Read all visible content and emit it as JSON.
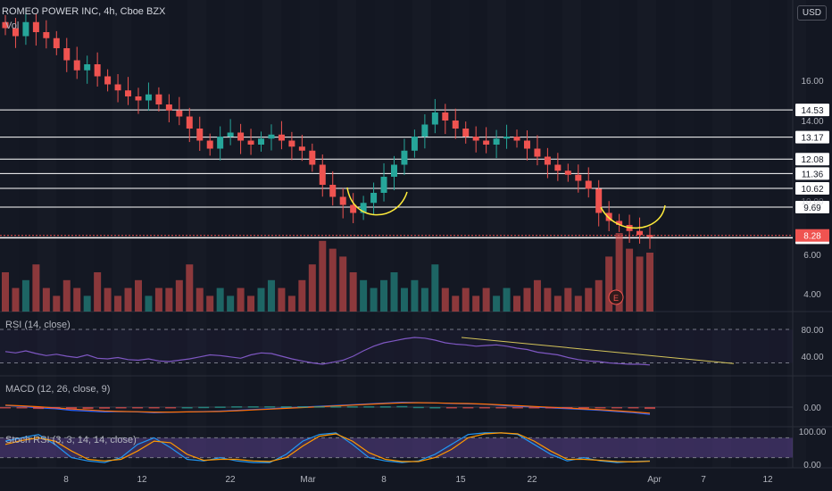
{
  "header": {
    "symbol_title": "ROMEO POWER INC, 4h, Cboe BZX",
    "volume_label": "Vol",
    "currency": "USD"
  },
  "panes": {
    "rsi_label": "RSI (14, close)",
    "macd_label": "MACD (12, 26, close, 9)",
    "stoch_label": "Stoch RSI (3, 3, 14, 14, close)"
  },
  "colors": {
    "background": "#131722",
    "up": "#26a69a",
    "down": "#ef5350",
    "rsi_line": "#7e57c2",
    "macd_line": "#2962ff",
    "signal_line": "#ff6d00",
    "annotation": "#ffeb3b",
    "stoch_k": "#2196f3",
    "stoch_d": "#ff9800",
    "price_tag_last": "#ef5350"
  },
  "chart_data": [
    {
      "type": "candlestick",
      "title": "ROMEO POWER INC, 4h, Cboe BZX",
      "x_ticks": [
        "8",
        "12",
        "22",
        "Mar",
        "8",
        "15",
        "22",
        "Apr",
        "7",
        "12"
      ],
      "y_ticks": [
        "16.00",
        "14.00",
        "6.00",
        "4.00"
      ],
      "price_levels": [
        "14.53",
        "13.17",
        "12.08",
        "11.36",
        "10.62",
        "9.69",
        "8.16"
      ],
      "last_price": "8.28",
      "partial_labels": [
        "10.00"
      ],
      "annotations": "Two yellow hand-drawn arcs under the early-March low and the late-March low",
      "closes": [
        18.6,
        18.2,
        18.9,
        18.4,
        18.1,
        17.6,
        17.0,
        16.5,
        16.8,
        16.2,
        15.8,
        15.5,
        15.2,
        15.0,
        15.3,
        14.8,
        14.5,
        14.2,
        13.6,
        13.0,
        12.6,
        13.2,
        13.4,
        13.0,
        12.8,
        13.1,
        13.3,
        13.0,
        12.7,
        12.5,
        11.8,
        10.8,
        10.2,
        9.8,
        9.4,
        9.9,
        10.4,
        11.2,
        11.8,
        12.5,
        13.2,
        13.8,
        14.4,
        14.0,
        13.6,
        13.2,
        13.0,
        12.8,
        13.1,
        13.2,
        13.0,
        12.6,
        12.2,
        11.8,
        11.5,
        11.3,
        11.0,
        10.6,
        9.4,
        9.0,
        8.8,
        8.5,
        8.3,
        8.28
      ],
      "volume_relative": [
        0.5,
        0.3,
        0.4,
        0.6,
        0.3,
        0.2,
        0.4,
        0.3,
        0.2,
        0.5,
        0.3,
        0.2,
        0.3,
        0.4,
        0.2,
        0.3,
        0.3,
        0.4,
        0.6,
        0.3,
        0.2,
        0.3,
        0.2,
        0.3,
        0.2,
        0.3,
        0.4,
        0.3,
        0.2,
        0.4,
        0.6,
        0.9,
        0.8,
        0.7,
        0.5,
        0.4,
        0.3,
        0.4,
        0.5,
        0.3,
        0.4,
        0.3,
        0.6,
        0.3,
        0.2,
        0.3,
        0.2,
        0.3,
        0.2,
        0.3,
        0.2,
        0.3,
        0.4,
        0.3,
        0.2,
        0.3,
        0.2,
        0.3,
        0.4,
        0.7,
        1.0,
        0.8,
        0.7,
        0.75
      ]
    },
    {
      "type": "line",
      "title": "RSI (14, close)",
      "y_ticks": [
        "80.00",
        "40.00"
      ],
      "values": [
        47,
        45,
        48,
        44,
        41,
        43,
        40,
        38,
        42,
        37,
        36,
        38,
        35,
        34,
        36,
        33,
        32,
        34,
        36,
        39,
        42,
        41,
        39,
        37,
        42,
        45,
        44,
        40,
        36,
        33,
        30,
        28,
        31,
        34,
        40,
        48,
        55,
        60,
        63,
        66,
        68,
        67,
        64,
        60,
        58,
        57,
        55,
        56,
        57,
        55,
        52,
        50,
        46,
        44,
        42,
        38,
        35,
        33,
        32,
        30,
        29,
        28,
        28,
        27
      ]
    },
    {
      "type": "line",
      "title": "MACD (12, 26, close, 9)",
      "y_ticks": [
        "0.00"
      ],
      "series": [
        {
          "name": "MACD",
          "values": [
            0.1,
            0.05,
            -0.05,
            -0.1,
            -0.2,
            -0.25,
            -0.3,
            -0.28,
            -0.3,
            -0.35,
            -0.32,
            -0.3,
            -0.28,
            -0.25,
            -0.2,
            -0.15,
            -0.1,
            -0.05,
            0.0,
            0.05,
            0.1,
            0.15,
            0.2,
            0.25,
            0.3,
            0.28,
            0.26,
            0.22,
            0.2,
            0.18,
            0.1,
            0.05,
            0.0,
            -0.05,
            -0.1,
            -0.15,
            -0.2,
            -0.28,
            -0.35,
            -0.45
          ]
        },
        {
          "name": "Signal",
          "values": [
            0.12,
            0.08,
            0.02,
            -0.05,
            -0.12,
            -0.18,
            -0.24,
            -0.27,
            -0.29,
            -0.31,
            -0.31,
            -0.3,
            -0.29,
            -0.27,
            -0.23,
            -0.18,
            -0.13,
            -0.08,
            -0.03,
            0.02,
            0.07,
            0.12,
            0.17,
            0.22,
            0.26,
            0.27,
            0.26,
            0.24,
            0.22,
            0.19,
            0.14,
            0.09,
            0.04,
            -0.01,
            -0.06,
            -0.11,
            -0.16,
            -0.23,
            -0.3,
            -0.38
          ]
        }
      ]
    },
    {
      "type": "line",
      "title": "Stoch RSI (3, 3, 14, 14, close)",
      "y_ticks": [
        "100.00",
        "0.00"
      ],
      "series": [
        {
          "name": "K",
          "values": [
            70,
            80,
            90,
            60,
            20,
            10,
            5,
            20,
            60,
            80,
            50,
            15,
            10,
            20,
            10,
            5,
            5,
            30,
            70,
            90,
            95,
            60,
            20,
            10,
            5,
            10,
            30,
            60,
            90,
            95,
            95,
            90,
            60,
            30,
            10,
            20,
            10,
            5,
            8,
            10
          ]
        },
        {
          "name": "D",
          "values": [
            60,
            72,
            80,
            70,
            40,
            15,
            10,
            15,
            40,
            70,
            65,
            30,
            12,
            15,
            15,
            10,
            8,
            20,
            55,
            85,
            92,
            70,
            35,
            15,
            8,
            8,
            20,
            45,
            80,
            92,
            95,
            92,
            70,
            40,
            15,
            15,
            12,
            8,
            7,
            9
          ]
        }
      ]
    }
  ]
}
